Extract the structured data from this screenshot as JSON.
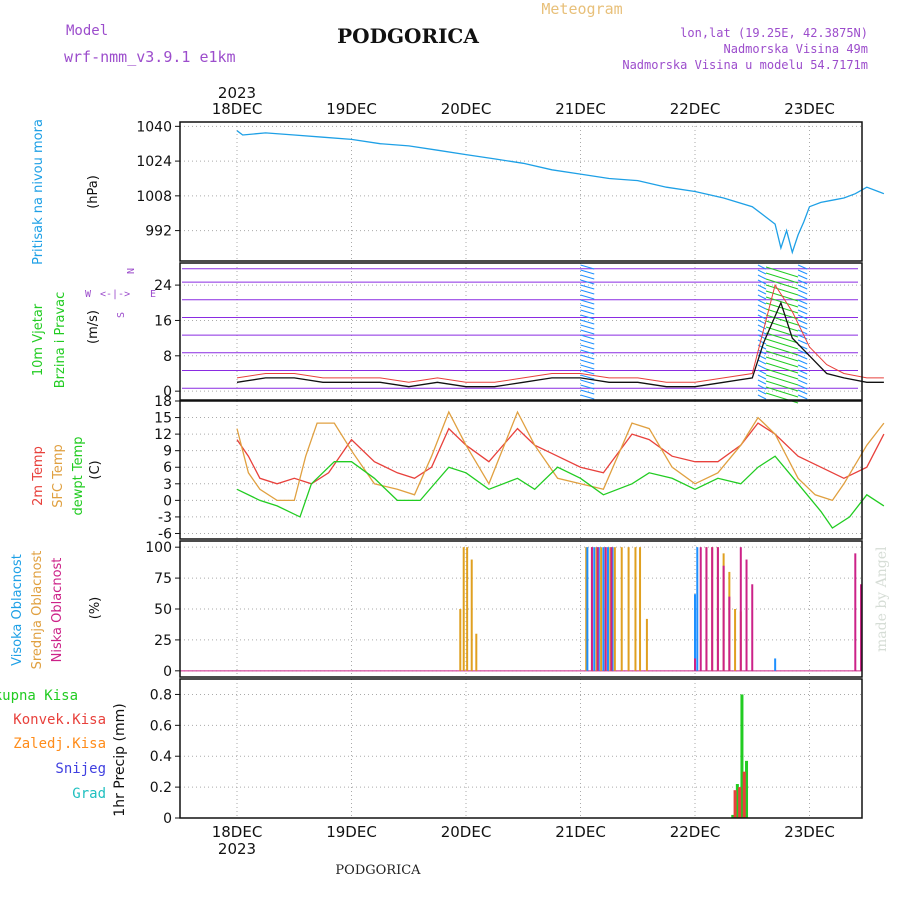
{
  "header": {
    "title": "PODGORICA",
    "model_label": "Model",
    "model_name": "wrf-nmm_v3.9.1 e1km",
    "product": "Meteogram",
    "coords": "lon,lat (19.25E, 42.3875N)",
    "elevation": "Nadmorska Visina 49m",
    "model_elevation": "Nadmorska Visina u modelu 54.7171m"
  },
  "footer": {
    "station": "PODGORICA",
    "credit": "made by Angel"
  },
  "x_axis": {
    "year": "2023",
    "days": [
      "18DEC",
      "19DEC",
      "20DEC",
      "21DEC",
      "22DEC",
      "23DEC"
    ]
  },
  "colors": {
    "pressure": "#1ea0e6",
    "wind_barb": "#8a2be2",
    "wind_barb_alt": "#1e90ff",
    "temp2m": "#e8413c",
    "sfc_temp": "#e0a040",
    "dewpt": "#22cc22",
    "cloud_high": "#1e90ff",
    "cloud_mid": "#e0a020",
    "cloud_low": "#cc2288",
    "precip_total": "#22cc22",
    "precip_conv": "#e8413c",
    "precip_frz": "#ff8c1a",
    "precip_snow": "#4040e0",
    "precip_grad": "#20c0c0"
  },
  "chart_data": [
    {
      "type": "line",
      "name": "pressure",
      "ylabel": "Pritisak na nivou mora",
      "unit": "(hPa)",
      "yticks": [
        992,
        1008,
        1024,
        1040
      ],
      "ylim": [
        978,
        1042
      ],
      "series": [
        {
          "x": [
            0,
            0.05,
            0.25,
            0.5,
            0.75,
            1.0,
            1.25,
            1.5,
            1.75,
            2.0,
            2.25,
            2.5,
            2.75,
            3.0,
            3.25,
            3.5,
            3.75,
            4.0,
            4.25,
            4.5,
            4.6,
            4.7,
            4.75,
            4.8,
            4.85,
            4.9,
            4.95,
            5.0,
            5.1,
            5.2,
            5.3,
            5.4,
            5.5,
            5.6,
            5.65
          ],
          "y": [
            1038,
            1036,
            1037,
            1036,
            1035,
            1034,
            1032,
            1031,
            1029,
            1027,
            1025,
            1023,
            1020,
            1018,
            1016,
            1015,
            1012,
            1010,
            1007,
            1003,
            999,
            995,
            984,
            992,
            982,
            990,
            996,
            1003,
            1005,
            1006,
            1007,
            1009,
            1012,
            1010,
            1009
          ]
        }
      ]
    },
    {
      "type": "line",
      "name": "wind",
      "ylabel": "10m Vjetar Brzina i Pravac",
      "unit": "(m/s)",
      "yticks": [
        0,
        8,
        16,
        24
      ],
      "ylim": [
        -2,
        29
      ],
      "barb_rows": [
        0,
        4,
        8,
        12,
        16,
        20,
        24,
        27
      ],
      "series": [
        {
          "name": "wind_speed",
          "x": [
            0,
            0.25,
            0.5,
            0.75,
            1.0,
            1.25,
            1.5,
            1.75,
            2.0,
            2.25,
            2.5,
            2.75,
            3.0,
            3.25,
            3.5,
            3.75,
            4.0,
            4.25,
            4.5,
            4.6,
            4.75,
            4.85,
            5.0,
            5.15,
            5.3,
            5.5,
            5.65
          ],
          "y": [
            2,
            3,
            3,
            2,
            2,
            2,
            1,
            2,
            1,
            1,
            2,
            3,
            3,
            2,
            2,
            1,
            1,
            2,
            3,
            11,
            20,
            12,
            8,
            4,
            3,
            2,
            2
          ]
        },
        {
          "name": "gust",
          "x": [
            0,
            0.25,
            0.5,
            0.75,
            1.0,
            1.25,
            1.5,
            1.75,
            2.0,
            2.25,
            2.5,
            2.75,
            3.0,
            3.25,
            3.5,
            3.75,
            4.0,
            4.25,
            4.5,
            4.6,
            4.7,
            4.85,
            5.0,
            5.15,
            5.3,
            5.5,
            5.65
          ],
          "y": [
            3,
            4,
            4,
            3,
            3,
            3,
            2,
            3,
            2,
            2,
            3,
            4,
            4,
            3,
            3,
            2,
            2,
            3,
            4,
            14,
            24,
            18,
            10,
            6,
            4,
            3,
            3
          ]
        }
      ]
    },
    {
      "type": "line",
      "name": "temperature",
      "ylabels": [
        "2m Temp",
        "SFC Temp",
        "dewpt Temp"
      ],
      "unit": "(C)",
      "yticks": [
        -6,
        -3,
        0,
        3,
        6,
        9,
        12,
        15,
        18
      ],
      "ylim": [
        -7,
        18
      ],
      "series": [
        {
          "name": "2m Temp",
          "x": [
            0,
            0.1,
            0.2,
            0.35,
            0.5,
            0.65,
            0.8,
            1.0,
            1.2,
            1.4,
            1.55,
            1.7,
            1.85,
            2.0,
            2.2,
            2.45,
            2.6,
            2.8,
            3.0,
            3.2,
            3.45,
            3.6,
            3.8,
            4.0,
            4.2,
            4.4,
            4.55,
            4.7,
            4.9,
            5.1,
            5.3,
            5.5,
            5.65
          ],
          "y": [
            11,
            8,
            4,
            3,
            4,
            3,
            5,
            11,
            7,
            5,
            4,
            6,
            13,
            10,
            7,
            13,
            10,
            8,
            6,
            5,
            12,
            11,
            8,
            7,
            7,
            10,
            14,
            12,
            8,
            6,
            4,
            6,
            12
          ]
        },
        {
          "name": "SFC Temp",
          "x": [
            0,
            0.1,
            0.2,
            0.35,
            0.5,
            0.6,
            0.7,
            0.85,
            1.0,
            1.2,
            1.4,
            1.55,
            1.7,
            1.85,
            2.0,
            2.2,
            2.45,
            2.6,
            2.8,
            3.0,
            3.2,
            3.45,
            3.6,
            3.8,
            4.0,
            4.2,
            4.4,
            4.55,
            4.7,
            4.9,
            5.05,
            5.2,
            5.3,
            5.5,
            5.65
          ],
          "y": [
            13,
            5,
            2,
            0,
            0,
            8,
            14,
            14,
            9,
            3,
            2,
            1,
            8,
            16,
            10,
            3,
            16,
            10,
            4,
            3,
            2,
            14,
            13,
            6,
            3,
            5,
            10,
            15,
            12,
            4,
            1,
            0,
            3,
            10,
            14
          ]
        },
        {
          "name": "dewpt Temp",
          "x": [
            0,
            0.2,
            0.35,
            0.55,
            0.65,
            0.85,
            1.0,
            1.2,
            1.4,
            1.6,
            1.85,
            2.0,
            2.2,
            2.45,
            2.6,
            2.8,
            3.0,
            3.2,
            3.45,
            3.6,
            3.8,
            4.0,
            4.2,
            4.4,
            4.55,
            4.7,
            4.9,
            5.1,
            5.2,
            5.35,
            5.5,
            5.65
          ],
          "y": [
            2,
            0,
            -1,
            -3,
            3,
            7,
            7,
            4,
            0,
            0,
            6,
            5,
            2,
            4,
            2,
            6,
            4,
            1,
            3,
            5,
            4,
            2,
            4,
            3,
            6,
            8,
            3,
            -2,
            -5,
            -3,
            1,
            -1
          ]
        }
      ]
    },
    {
      "type": "bar",
      "name": "cloud_cover",
      "ylabels": [
        "Visoka Oblacnost",
        "Srednja Oblacnost",
        "Niska Oblacnost"
      ],
      "unit": "(%)",
      "yticks": [
        0,
        25,
        50,
        75,
        100
      ],
      "ylim": [
        -5,
        105
      ],
      "series": [
        {
          "name": "Srednja Oblacnost",
          "x": [
            1.95,
            1.98,
            2.01,
            2.05,
            2.09,
            3.05,
            3.1,
            3.14,
            3.18,
            3.22,
            3.26,
            3.3,
            3.36,
            3.42,
            3.48,
            3.52,
            3.58,
            4.1,
            4.15,
            4.2,
            4.25,
            4.3,
            4.35,
            4.4
          ],
          "y": [
            50,
            100,
            100,
            90,
            30,
            100,
            100,
            100,
            100,
            100,
            100,
            100,
            100,
            100,
            100,
            100,
            42,
            100,
            100,
            100,
            95,
            80,
            50,
            48
          ]
        },
        {
          "name": "Visoka Oblacnost",
          "x": [
            3.06,
            3.12,
            3.16,
            3.2,
            3.24,
            3.28,
            4.0,
            4.02,
            4.7
          ],
          "y": [
            100,
            100,
            100,
            100,
            100,
            100,
            62,
            100,
            10
          ]
        },
        {
          "name": "Niska Oblacnost",
          "x": [
            3.1,
            3.15,
            3.22,
            3.27,
            4.0,
            4.05,
            4.1,
            4.15,
            4.2,
            4.25,
            4.3,
            4.4,
            4.45,
            4.5,
            5.4,
            5.45
          ],
          "y": [
            100,
            100,
            100,
            100,
            10,
            100,
            100,
            100,
            100,
            85,
            60,
            100,
            90,
            70,
            95,
            70
          ]
        }
      ]
    },
    {
      "type": "bar",
      "name": "precipitation",
      "ylabels": [
        "Ukupna Kisa",
        "Konvek.Kisa",
        "Zaledj.Kisa",
        "Snijeg",
        "Grad"
      ],
      "ylabel": "1hr Precip (mm)",
      "yticks": [
        0,
        0.2,
        0.4,
        0.6,
        0.8
      ],
      "ylim": [
        0,
        0.9
      ],
      "series": [
        {
          "name": "Ukupna Kisa",
          "x": [
            4.33,
            4.37,
            4.41,
            4.45
          ],
          "y": [
            0.02,
            0.22,
            0.8,
            0.37
          ]
        },
        {
          "name": "Konvek.Kisa",
          "x": [
            4.35,
            4.39,
            4.43
          ],
          "y": [
            0.18,
            0.2,
            0.3
          ]
        }
      ]
    }
  ]
}
